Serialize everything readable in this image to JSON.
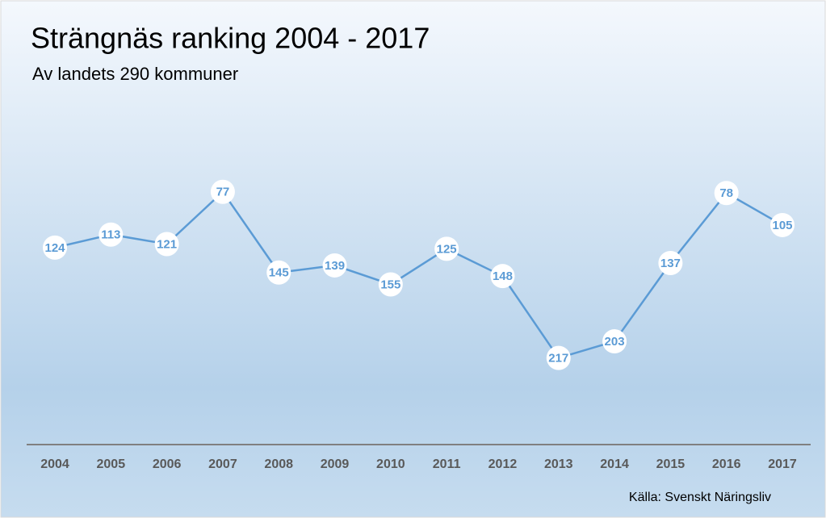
{
  "chart_data": {
    "type": "line",
    "title": "Strängnäs ranking 2004 - 2017",
    "subtitle": "Av landets 290 kommuner",
    "categories": [
      "2004",
      "2005",
      "2006",
      "2007",
      "2008",
      "2009",
      "2010",
      "2011",
      "2012",
      "2013",
      "2014",
      "2015",
      "2016",
      "2017"
    ],
    "values": [
      124,
      113,
      121,
      77,
      145,
      139,
      155,
      125,
      148,
      217,
      203,
      137,
      78,
      105
    ],
    "color": "#5b9bd5",
    "ylim": [
      290,
      1
    ],
    "source": "Källa: Svenskt Näringsliv"
  }
}
